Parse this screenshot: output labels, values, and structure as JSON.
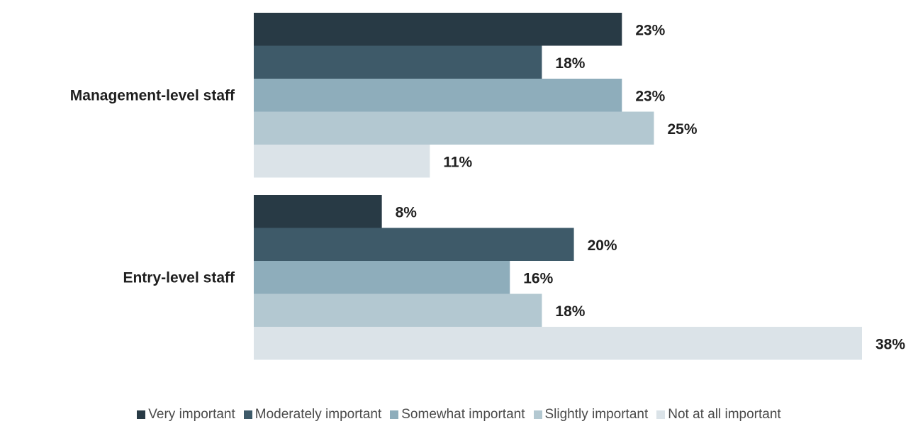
{
  "chart_data": {
    "type": "bar",
    "orientation": "horizontal",
    "categories": [
      "Management-level staff",
      "Entry-level staff"
    ],
    "series": [
      {
        "name": "Very important",
        "color": "#283a45",
        "values": [
          23,
          8
        ]
      },
      {
        "name": "Moderately important",
        "color": "#3e5a69",
        "values": [
          18,
          20
        ]
      },
      {
        "name": "Somewhat important",
        "color": "#8eadbb",
        "values": [
          23,
          16
        ]
      },
      {
        "name": "Slightly important",
        "color": "#b3c8d1",
        "values": [
          25,
          18
        ]
      },
      {
        "name": "Not at all important",
        "color": "#dbe3e8",
        "values": [
          11,
          38
        ]
      }
    ],
    "data_labels": [
      [
        "23%",
        "8%"
      ],
      [
        "18%",
        "20%"
      ],
      [
        "23%",
        "16%"
      ],
      [
        "25%",
        "18%"
      ],
      [
        "11%",
        "38%"
      ]
    ],
    "xlim": [
      0,
      38
    ],
    "title": "",
    "xlabel": "",
    "ylabel": "",
    "grid": false,
    "legend_position": "bottom"
  }
}
